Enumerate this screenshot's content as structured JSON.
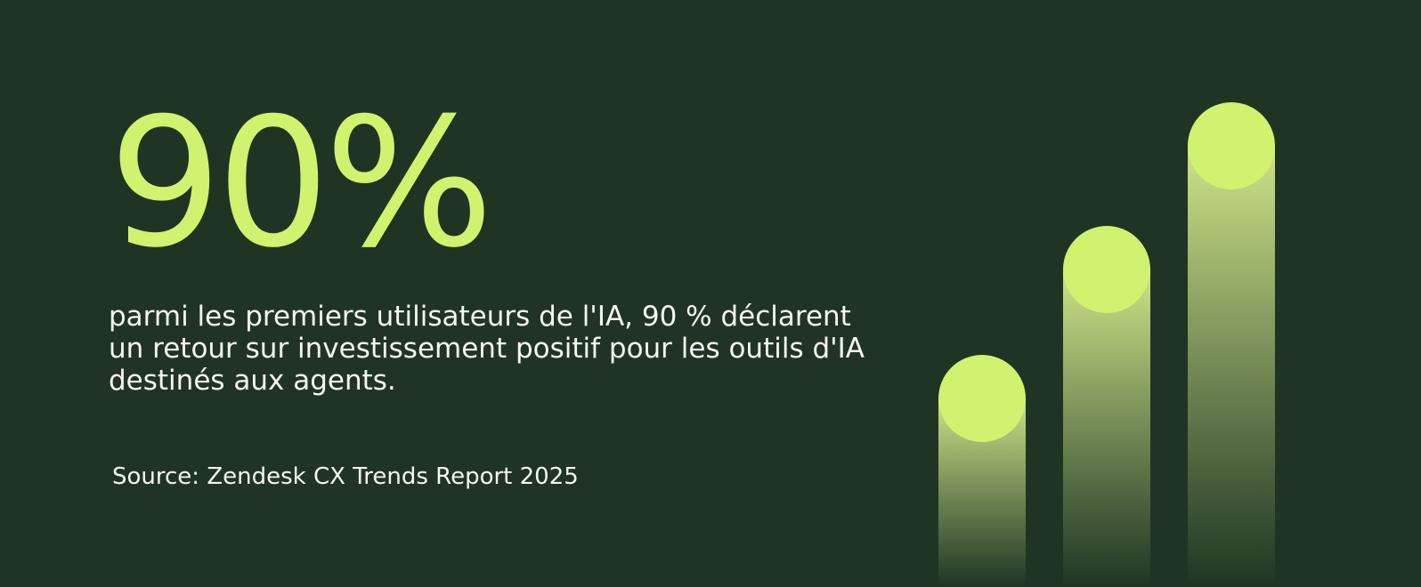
{
  "headline": "90%",
  "body": {
    "lines": [
      "parmi les premiers utilisateurs de l'IA, 90 % déclarent",
      "un retour sur investissement positif pour les outils d'IA",
      "destinés aux agents."
    ]
  },
  "source": "Source: Zendesk CX Trends Report 2025"
}
